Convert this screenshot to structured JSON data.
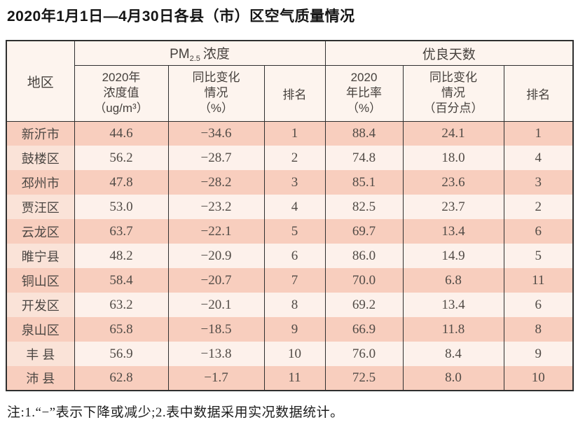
{
  "page": {
    "title": "2020年1月1日—4月30日各县（市）区空气质量情况",
    "note": "注:1.“−”表示下降或减少;2.表中数据采用实况数据统计。"
  },
  "colors": {
    "row_stripe_dark": "#f8cebe",
    "row_stripe_light": "#fdf1eb",
    "row_light_region_cell": "#fae3d8",
    "header_background": "#fdf4ee",
    "table_border": "#2f2f2f"
  },
  "table": {
    "header": {
      "region": "地区",
      "pm25_group": {
        "prefix": "PM",
        "sub": "2.5",
        "suffix": "浓度"
      },
      "good_days_group": "优良天数",
      "pm25_value_lines": [
        "2020年",
        "浓度值",
        "（ug/m³）"
      ],
      "pm25_change_lines": [
        "同比变化",
        "情况",
        "（%）"
      ],
      "pm25_rank": "排名",
      "good_ratio_lines": [
        "2020",
        "年比率",
        "（%）"
      ],
      "good_change_lines": [
        "同比变化",
        "情况",
        "（百分点）"
      ],
      "good_rank": "排名"
    },
    "rows": [
      {
        "region": "新沂市",
        "pm25_value": "44.6",
        "pm25_change": "−34.6",
        "pm25_rank": "1",
        "good_ratio": "88.4",
        "good_change": "24.1",
        "good_rank": "1"
      },
      {
        "region": "鼓楼区",
        "pm25_value": "56.2",
        "pm25_change": "−28.7",
        "pm25_rank": "2",
        "good_ratio": "74.8",
        "good_change": "18.0",
        "good_rank": "4"
      },
      {
        "region": "邳州市",
        "pm25_value": "47.8",
        "pm25_change": "−28.2",
        "pm25_rank": "3",
        "good_ratio": "85.1",
        "good_change": "23.6",
        "good_rank": "3"
      },
      {
        "region": "贾汪区",
        "pm25_value": "53.0",
        "pm25_change": "−23.2",
        "pm25_rank": "4",
        "good_ratio": "82.5",
        "good_change": "23.7",
        "good_rank": "2"
      },
      {
        "region": "云龙区",
        "pm25_value": "63.7",
        "pm25_change": "−22.1",
        "pm25_rank": "5",
        "good_ratio": "69.7",
        "good_change": "13.4",
        "good_rank": "6"
      },
      {
        "region": "睢宁县",
        "pm25_value": "48.2",
        "pm25_change": "−20.9",
        "pm25_rank": "6",
        "good_ratio": "86.0",
        "good_change": "14.9",
        "good_rank": "5"
      },
      {
        "region": "铜山区",
        "pm25_value": "58.4",
        "pm25_change": "−20.7",
        "pm25_rank": "7",
        "good_ratio": "70.0",
        "good_change": "6.8",
        "good_rank": "11"
      },
      {
        "region": "开发区",
        "pm25_value": "63.2",
        "pm25_change": "−20.1",
        "pm25_rank": "8",
        "good_ratio": "69.2",
        "good_change": "13.4",
        "good_rank": "6"
      },
      {
        "region": "泉山区",
        "pm25_value": "65.8",
        "pm25_change": "−18.5",
        "pm25_rank": "9",
        "good_ratio": "66.9",
        "good_change": "11.8",
        "good_rank": "8"
      },
      {
        "region": "丰 县",
        "pm25_value": "56.9",
        "pm25_change": "−13.8",
        "pm25_rank": "10",
        "good_ratio": "76.0",
        "good_change": "8.4",
        "good_rank": "9"
      },
      {
        "region": "沛 县",
        "pm25_value": "62.8",
        "pm25_change": "−1.7",
        "pm25_rank": "11",
        "good_ratio": "72.5",
        "good_change": "8.0",
        "good_rank": "10"
      }
    ]
  },
  "chart_data": {
    "type": "table",
    "title": "2020年1月1日—4月30日各县（市）区空气质量情况",
    "column_groups": [
      "PM2.5浓度",
      "优良天数"
    ],
    "columns": [
      "地区",
      "PM2.5 2020年浓度值(ug/m³)",
      "PM2.5同比变化情况(%)",
      "PM2.5排名",
      "优良天数2020年比率(%)",
      "优良天数同比变化情况(百分点)",
      "优良天数排名"
    ],
    "rows": [
      [
        "新沂市",
        44.6,
        -34.6,
        1,
        88.4,
        24.1,
        1
      ],
      [
        "鼓楼区",
        56.2,
        -28.7,
        2,
        74.8,
        18.0,
        4
      ],
      [
        "邳州市",
        47.8,
        -28.2,
        3,
        85.1,
        23.6,
        3
      ],
      [
        "贾汪区",
        53.0,
        -23.2,
        4,
        82.5,
        23.7,
        2
      ],
      [
        "云龙区",
        63.7,
        -22.1,
        5,
        69.7,
        13.4,
        6
      ],
      [
        "睢宁县",
        48.2,
        -20.9,
        6,
        86.0,
        14.9,
        5
      ],
      [
        "铜山区",
        58.4,
        -20.7,
        7,
        70.0,
        6.8,
        11
      ],
      [
        "开发区",
        63.2,
        -20.1,
        8,
        69.2,
        13.4,
        6
      ],
      [
        "泉山区",
        65.8,
        -18.5,
        9,
        66.9,
        11.8,
        8
      ],
      [
        "丰县",
        56.9,
        -13.8,
        10,
        76.0,
        8.4,
        9
      ],
      [
        "沛县",
        62.8,
        -1.7,
        11,
        72.5,
        8.0,
        10
      ]
    ],
    "footnote": "注:1.“−”表示下降或减少;2.表中数据采用实况数据统计。"
  }
}
